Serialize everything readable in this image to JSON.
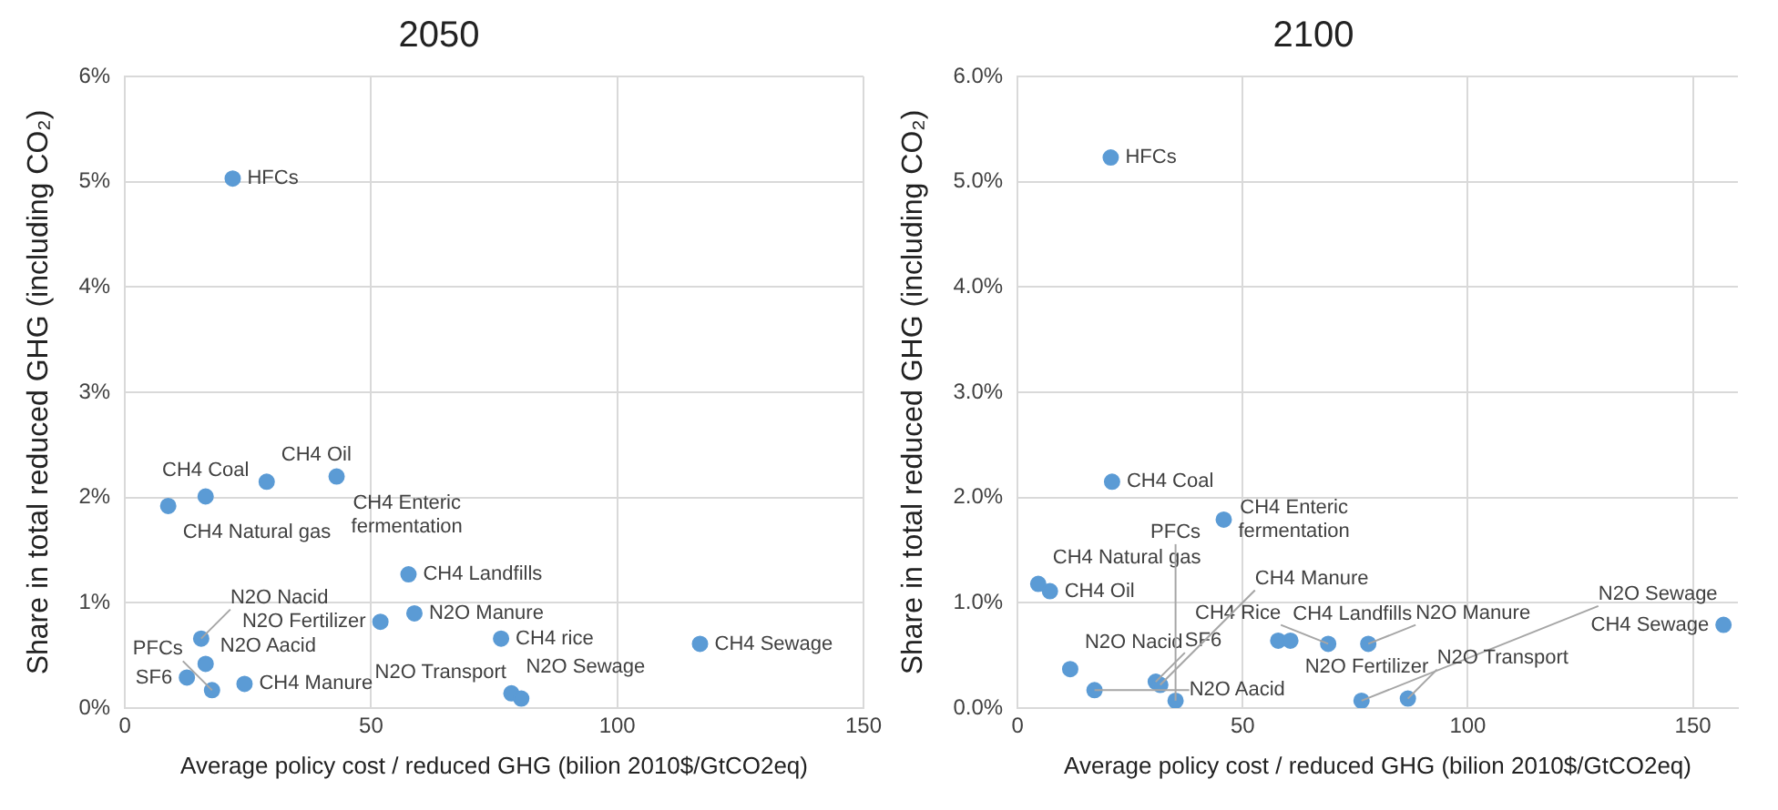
{
  "chart_data": [
    {
      "type": "scatter",
      "title": "2050",
      "xlabel": "Average policy cost / reduced GHG (bilion 2010$/GtCO2eq)",
      "ylabel": "Share in total reduced GHG (including CO₂)",
      "xlim": [
        0,
        150
      ],
      "xticks": [
        0,
        50,
        100,
        150
      ],
      "ylim": [
        0,
        6
      ],
      "yticks": [
        {
          "value": 0,
          "label": "0%"
        },
        {
          "value": 1,
          "label": "1%"
        },
        {
          "value": 2,
          "label": "2%"
        },
        {
          "value": 3,
          "label": "3%"
        },
        {
          "value": 4,
          "label": "4%"
        },
        {
          "value": 5,
          "label": "5%"
        },
        {
          "value": 6,
          "label": "6%"
        }
      ],
      "grid": true,
      "legend": false,
      "marker": "circle",
      "series": [
        {
          "color": "#5b9bd5",
          "x": [
            21.9,
            8.8,
            16.4,
            28.8,
            43,
            57.6,
            51.9,
            58.8,
            15.5,
            16.4,
            12.6,
            17.7,
            24.3,
            76.4,
            78.5,
            80.5,
            116.8
          ],
          "values": [
            5.03,
            1.92,
            2.01,
            2.15,
            2.2,
            1.27,
            0.82,
            0.9,
            0.66,
            0.42,
            0.29,
            0.17,
            0.23,
            0.66,
            0.14,
            0.09,
            0.61
          ]
        }
      ],
      "annotations": [
        {
          "text": "HFCs",
          "x": 21.9,
          "y": 5.03
        },
        {
          "text": "CH4 Natural gas",
          "x": 8.8,
          "y": 1.92
        },
        {
          "text": "CH4 Coal",
          "x": 16.4,
          "y": 2.01
        },
        {
          "text": "CH4 Oil",
          "x": 28.8,
          "y": 2.15
        },
        {
          "text": "CH4 Enteric fermentation",
          "x": 43,
          "y": 2.2
        },
        {
          "text": "CH4 Landfills",
          "x": 57.6,
          "y": 1.27
        },
        {
          "text": "N2O Fertilizer",
          "x": 51.9,
          "y": 0.82
        },
        {
          "text": "N2O Manure",
          "x": 58.8,
          "y": 0.9
        },
        {
          "text": "N2O Nacid",
          "x": 15.5,
          "y": 0.66
        },
        {
          "text": "N2O Aacid",
          "x": 16.4,
          "y": 0.42
        },
        {
          "text": "SF6",
          "x": 12.6,
          "y": 0.29
        },
        {
          "text": "PFCs",
          "x": 17.7,
          "y": 0.17
        },
        {
          "text": "CH4 Manure",
          "x": 24.3,
          "y": 0.23
        },
        {
          "text": "CH4 rice",
          "x": 76.4,
          "y": 0.66
        },
        {
          "text": "N2O Sewage",
          "x": 78.5,
          "y": 0.14
        },
        {
          "text": "N2O Transport",
          "x": 80.5,
          "y": 0.09
        },
        {
          "text": "CH4 Sewage",
          "x": 116.8,
          "y": 0.61
        }
      ]
    },
    {
      "type": "scatter",
      "title": "2100",
      "xlabel": "Average policy cost / reduced GHG (bilion 2010$/GtCO2eq)",
      "ylabel": "Share in total reduced GHG (including CO₂)",
      "xlim": [
        0,
        160
      ],
      "xticks": [
        0,
        50,
        100,
        150
      ],
      "ylim": [
        0,
        6
      ],
      "yticks": [
        {
          "value": 0,
          "label": "0.0%"
        },
        {
          "value": 1,
          "label": "1.0%"
        },
        {
          "value": 2,
          "label": "2.0%"
        },
        {
          "value": 3,
          "label": "3.0%"
        },
        {
          "value": 4,
          "label": "4.0%"
        },
        {
          "value": 5,
          "label": "5.0%"
        },
        {
          "value": 6,
          "label": "6.0%"
        }
      ],
      "grid": true,
      "legend": false,
      "marker": "circle",
      "series": [
        {
          "color": "#5b9bd5",
          "x": [
            20.7,
            4.6,
            7.2,
            21,
            45.8,
            57.9,
            60.6,
            69,
            77.9,
            156.8,
            11.7,
            17.1,
            30.7,
            31.7,
            35.1,
            76.4,
            86.7
          ],
          "values": [
            5.23,
            1.18,
            1.11,
            2.15,
            1.79,
            0.64,
            0.64,
            0.61,
            0.61,
            0.79,
            0.37,
            0.17,
            0.25,
            0.22,
            0.07,
            0.07,
            0.09
          ]
        }
      ],
      "annotations": [
        {
          "text": "HFCs",
          "x": 20.7,
          "y": 5.23
        },
        {
          "text": "CH4 Natural gas",
          "x": 4.6,
          "y": 1.18
        },
        {
          "text": "CH4 Oil",
          "x": 7.2,
          "y": 1.11
        },
        {
          "text": "CH4 Coal",
          "x": 21,
          "y": 2.15
        },
        {
          "text": "CH4 Enteric fermentation",
          "x": 45.8,
          "y": 1.79
        },
        {
          "text": "CH4 Landfills",
          "x": 57.9,
          "y": 0.64
        },
        {
          "text": "N2O Fertilizer",
          "x": 60.6,
          "y": 0.64
        },
        {
          "text": "CH4 Rice",
          "x": 69,
          "y": 0.61
        },
        {
          "text": "N2O Manure",
          "x": 77.9,
          "y": 0.61
        },
        {
          "text": "CH4 Sewage",
          "x": 156.8,
          "y": 0.79
        },
        {
          "text": "N2O Nacid",
          "x": 11.7,
          "y": 0.37
        },
        {
          "text": "N2O Aacid",
          "x": 17.1,
          "y": 0.17
        },
        {
          "text": "SF6",
          "x": 30.7,
          "y": 0.25
        },
        {
          "text": "CH4 Manure",
          "x": 31.7,
          "y": 0.22
        },
        {
          "text": "PFCs",
          "x": 35.1,
          "y": 0.07
        },
        {
          "text": "N2O Sewage",
          "x": 76.4,
          "y": 0.07
        },
        {
          "text": "N2O Transport",
          "x": 86.7,
          "y": 0.09
        }
      ]
    }
  ]
}
